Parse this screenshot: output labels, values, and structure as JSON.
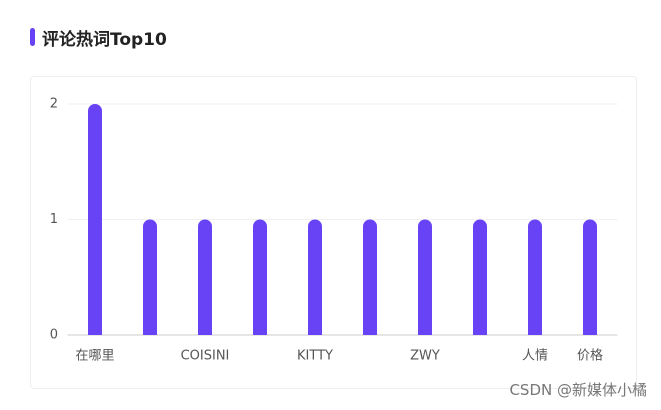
{
  "title": "评论热词Top10",
  "watermark": "CSDN @新媒体小橘",
  "chart_data": {
    "type": "bar",
    "categories": [
      "在哪里",
      null,
      "COISINI",
      null,
      "KITTY",
      null,
      "ZWY",
      null,
      "人情",
      "价格"
    ],
    "values": [
      2,
      1,
      1,
      1,
      1,
      1,
      1,
      1,
      1,
      1
    ],
    "color": "#6842f5",
    "ylim": [
      0,
      2
    ],
    "yticks": [
      0,
      1,
      2
    ],
    "grid": true
  }
}
